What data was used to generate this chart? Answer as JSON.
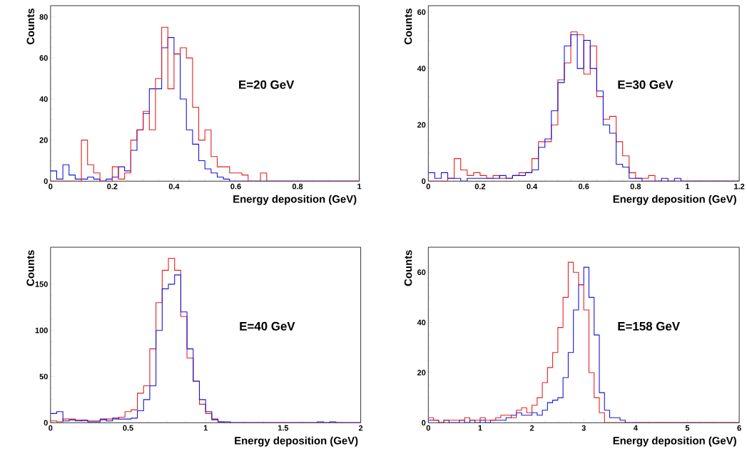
{
  "chart_data": [
    {
      "type": "histogram",
      "xlabel": "Energy deposition  (GeV)",
      "ylabel": "Counts",
      "annotations": [
        "E=20 GeV"
      ],
      "xlim": [
        0,
        1
      ],
      "ylim": [
        0,
        85.5
      ],
      "xticks": [
        0,
        0.2,
        0.4,
        0.6,
        0.8,
        1
      ],
      "yticks": [
        0,
        20,
        40,
        60,
        80
      ],
      "bins": [
        0,
        0.02,
        0.04,
        0.06,
        0.08,
        0.1,
        0.12,
        0.14,
        0.16,
        0.18,
        0.2,
        0.22,
        0.24,
        0.26,
        0.28,
        0.3,
        0.32,
        0.34,
        0.36,
        0.38,
        0.4,
        0.42,
        0.44,
        0.46,
        0.48,
        0.5,
        0.52,
        0.54,
        0.56,
        0.58,
        0.6,
        0.62,
        0.64,
        0.66,
        0.68,
        0.7,
        0.72,
        0.74,
        0.76,
        0.78,
        0.8,
        0.82,
        0.84,
        0.86,
        0.88,
        0.9,
        0.92,
        0.94,
        0.96,
        0.98,
        1.0
      ],
      "series": [
        {
          "color": "#1414dc",
          "values": [
            5,
            1,
            8,
            3,
            1,
            1,
            2,
            1,
            0,
            1,
            2,
            7,
            5,
            15,
            25,
            33,
            45,
            45,
            65,
            70,
            62,
            40,
            25,
            18,
            10,
            6,
            4,
            2,
            1,
            0,
            0,
            0,
            0,
            0,
            0,
            0,
            0,
            0,
            0,
            0,
            0,
            0,
            0,
            0,
            0,
            0,
            0,
            0,
            0,
            0
          ]
        },
        {
          "color": "#e41e1e",
          "values": [
            0,
            0,
            0,
            0,
            0,
            20,
            8,
            4,
            0,
            0,
            7,
            1,
            4,
            20,
            25,
            34,
            25,
            50,
            75,
            45,
            62,
            65,
            60,
            36,
            20,
            25,
            12,
            7,
            7,
            4,
            4,
            3,
            0,
            0,
            4,
            0,
            0,
            0,
            0,
            0,
            0,
            0,
            0,
            0,
            0,
            0,
            0,
            0,
            0,
            0
          ]
        }
      ]
    },
    {
      "type": "histogram",
      "xlabel": "Energy deposition  (GeV)",
      "ylabel": "Counts",
      "annotations": [
        "E=30 GeV"
      ],
      "xlim": [
        0,
        1.2
      ],
      "ylim": [
        0,
        62.3
      ],
      "xticks": [
        0,
        0.2,
        0.4,
        0.6,
        0.8,
        1,
        1.2
      ],
      "yticks": [
        0,
        20,
        40,
        60
      ],
      "bins": [
        0,
        0.025,
        0.05,
        0.075,
        0.1,
        0.125,
        0.15,
        0.175,
        0.2,
        0.225,
        0.25,
        0.275,
        0.3,
        0.325,
        0.35,
        0.375,
        0.4,
        0.425,
        0.45,
        0.475,
        0.5,
        0.525,
        0.55,
        0.575,
        0.6,
        0.625,
        0.65,
        0.675,
        0.7,
        0.725,
        0.75,
        0.775,
        0.8,
        0.825,
        0.85,
        0.875,
        0.9,
        0.925,
        0.95,
        0.975,
        1.0,
        1.025,
        1.05,
        1.075,
        1.1,
        1.125,
        1.15,
        1.175,
        1.2
      ],
      "series": [
        {
          "color": "#e41e1e",
          "values": [
            0,
            0,
            0,
            1,
            8,
            4,
            2,
            3,
            2,
            1,
            2,
            1,
            1,
            2,
            3,
            3,
            8,
            14,
            14,
            20,
            36,
            42,
            53,
            52,
            38,
            48,
            30,
            22,
            23,
            14,
            9,
            3,
            1,
            1,
            2,
            0,
            0,
            0,
            0,
            0,
            0,
            0,
            0,
            0,
            0,
            0,
            0,
            0
          ]
        },
        {
          "color": "#1414dc",
          "values": [
            3,
            1,
            3,
            1,
            1,
            0,
            1,
            1,
            1,
            1,
            1,
            2,
            1,
            2,
            2,
            3,
            4,
            12,
            15,
            25,
            35,
            48,
            52,
            40,
            50,
            40,
            32,
            20,
            17,
            6,
            5,
            1,
            1,
            0,
            0,
            0,
            1,
            0,
            1,
            0,
            0,
            0,
            0,
            0,
            0,
            0,
            0,
            0
          ]
        }
      ]
    },
    {
      "type": "histogram",
      "xlabel": "Energy deposition  (GeV)",
      "ylabel": "Counts",
      "annotations": [
        "E=40 GeV"
      ],
      "xlim": [
        0,
        2
      ],
      "ylim": [
        0,
        190
      ],
      "xticks": [
        0,
        0.5,
        1,
        1.5,
        2
      ],
      "yticks": [
        0,
        50,
        100,
        150
      ],
      "bins": [
        0,
        0.04,
        0.08,
        0.12,
        0.16,
        0.2,
        0.24,
        0.28,
        0.32,
        0.36,
        0.4,
        0.44,
        0.48,
        0.52,
        0.56,
        0.6,
        0.64,
        0.68,
        0.72,
        0.76,
        0.8,
        0.84,
        0.88,
        0.92,
        0.96,
        1.0,
        1.04,
        1.08,
        1.12,
        1.16,
        1.2,
        1.24,
        1.28,
        1.32,
        1.36,
        1.4,
        1.44,
        1.48,
        1.52,
        1.56,
        1.6,
        1.64,
        1.68,
        1.72,
        1.76,
        1.8,
        1.84,
        1.88,
        1.92,
        1.96,
        2.0
      ],
      "series": [
        {
          "color": "#e41e1e",
          "values": [
            2,
            1,
            4,
            4,
            3,
            2,
            2,
            2,
            3,
            4,
            4,
            6,
            12,
            14,
            32,
            40,
            80,
            130,
            165,
            178,
            165,
            115,
            70,
            45,
            20,
            10,
            3,
            1,
            0,
            0,
            0,
            0,
            0,
            0,
            0,
            0,
            0,
            0,
            0,
            0,
            0,
            0,
            0,
            0,
            0,
            0,
            0,
            0,
            0,
            0
          ]
        },
        {
          "color": "#1414dc",
          "values": [
            10,
            12,
            2,
            3,
            2,
            3,
            1,
            1,
            4,
            2,
            5,
            4,
            4,
            5,
            13,
            25,
            40,
            100,
            145,
            150,
            160,
            120,
            80,
            45,
            25,
            12,
            4,
            1,
            1,
            0,
            0,
            0,
            0,
            0,
            0,
            0,
            0,
            0,
            0,
            0,
            0,
            0,
            0,
            1,
            0,
            1,
            0,
            0,
            0,
            0
          ]
        }
      ]
    },
    {
      "type": "histogram",
      "xlabel": "Energy deposition  (GeV)",
      "ylabel": "Counts",
      "annotations": [
        "E=158 GeV"
      ],
      "xlim": [
        0,
        6
      ],
      "ylim": [
        0,
        70
      ],
      "xticks": [
        0,
        1,
        2,
        3,
        4,
        5,
        6
      ],
      "yticks": [
        0,
        20,
        40,
        60
      ],
      "bins": [
        0,
        0.1,
        0.2,
        0.3,
        0.4,
        0.5,
        0.6,
        0.7,
        0.8,
        0.9,
        1.0,
        1.1,
        1.2,
        1.3,
        1.4,
        1.5,
        1.6,
        1.7,
        1.8,
        1.9,
        2.0,
        2.1,
        2.2,
        2.3,
        2.4,
        2.5,
        2.6,
        2.7,
        2.8,
        2.9,
        3.0,
        3.1,
        3.2,
        3.3,
        3.4,
        3.5,
        3.6,
        3.7,
        3.8,
        3.9,
        4.0,
        4.1,
        4.2,
        4.3,
        4.4,
        4.5,
        4.6,
        4.7,
        4.8,
        4.9,
        5.0,
        5.1,
        5.2,
        5.3,
        5.4,
        5.5,
        5.6,
        5.7,
        5.8,
        5.9,
        6.0
      ],
      "series": [
        {
          "color": "#1414dc",
          "values": [
            1,
            1,
            0,
            1,
            0,
            0,
            1,
            0,
            1,
            0,
            1,
            0,
            1,
            1,
            1,
            2,
            3,
            4,
            3,
            3,
            4,
            3,
            5,
            8,
            9,
            10,
            18,
            28,
            45,
            55,
            62,
            50,
            35,
            12,
            5,
            2,
            2,
            1,
            0,
            0,
            0,
            0,
            0,
            0,
            0,
            0,
            0,
            0,
            0,
            0,
            0,
            0,
            0,
            0,
            0,
            0,
            0,
            0,
            0,
            0
          ]
        },
        {
          "color": "#e41e1e",
          "values": [
            2,
            1,
            0,
            1,
            1,
            1,
            1,
            2,
            1,
            1,
            2,
            1,
            1,
            2,
            3,
            3,
            2,
            5,
            6,
            4,
            7,
            10,
            16,
            22,
            28,
            38,
            50,
            64,
            60,
            55,
            45,
            20,
            10,
            4,
            0,
            0,
            0,
            0,
            0,
            0,
            0,
            0,
            0,
            0,
            0,
            0,
            0,
            0,
            0,
            0,
            0,
            0,
            0,
            0,
            0,
            0,
            0,
            0,
            0,
            0
          ]
        }
      ]
    }
  ]
}
